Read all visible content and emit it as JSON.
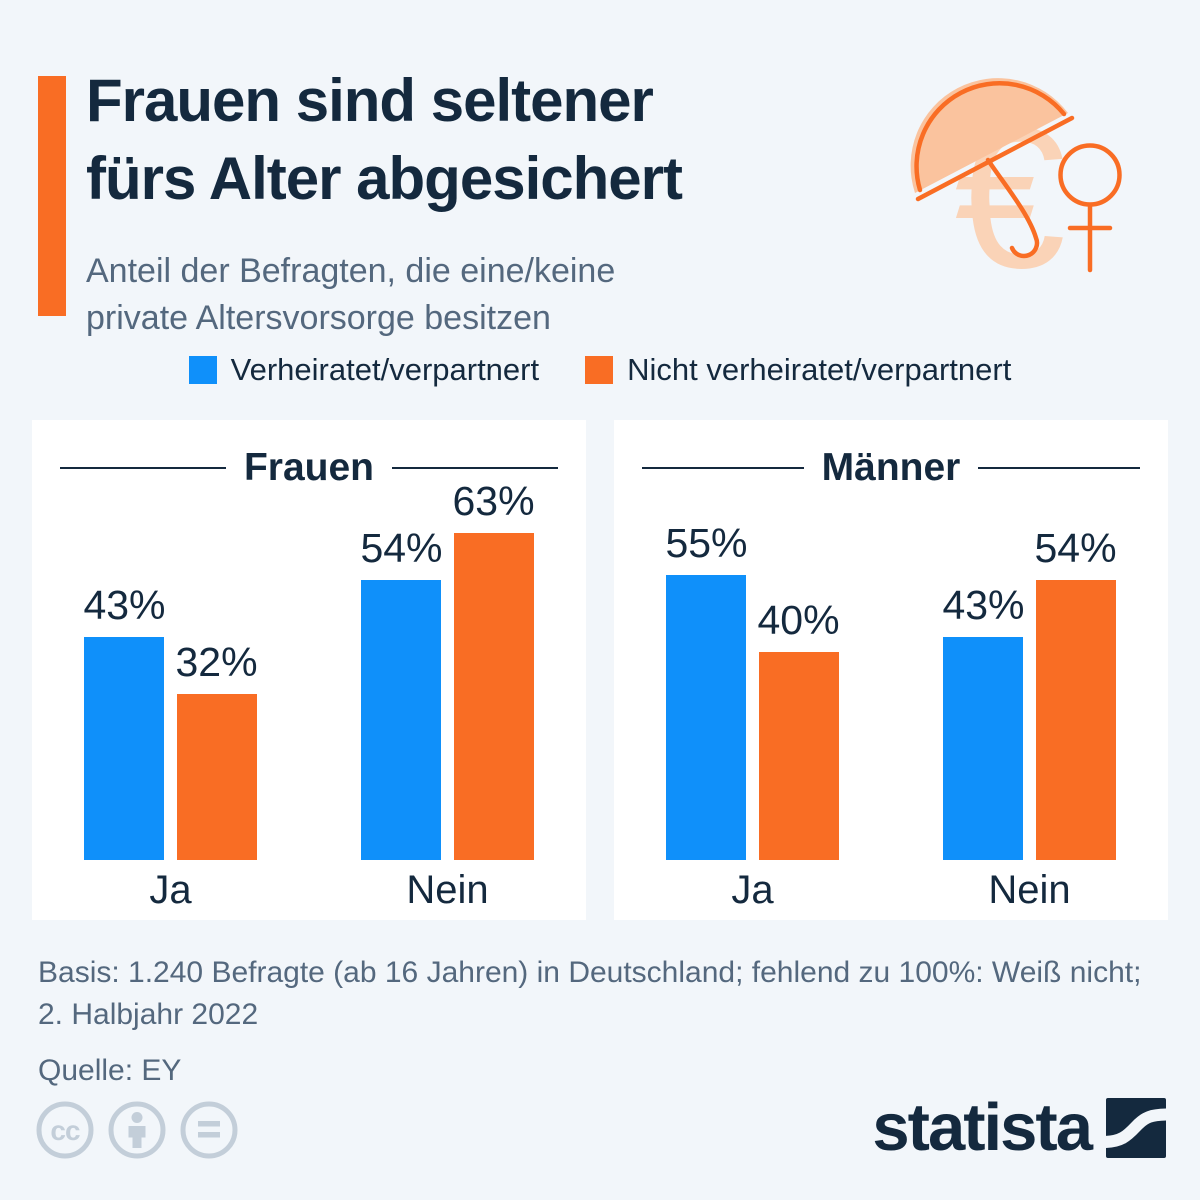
{
  "header": {
    "title_lines": [
      "Frauen sind seltener",
      "fürs Alter abgesichert"
    ],
    "subtitle_lines": [
      "Anteil der Befragten, die eine/keine",
      "private Altersvorsorge besitzen"
    ]
  },
  "legend": {
    "items": [
      {
        "label": "Verheiratet/verpartnert",
        "color": "#0f90fa"
      },
      {
        "label": "Nicht verheiratet/verpartnert",
        "color": "#f96d24"
      }
    ]
  },
  "chart_data": {
    "type": "bar",
    "title": "Anteil der Befragten, die eine/keine private Altersvorsorge besitzen",
    "categories": [
      "Ja",
      "Nein"
    ],
    "value_suffix": "%",
    "ylim": [
      0,
      70
    ],
    "grid": false,
    "legend_position": "top",
    "panels": [
      {
        "title": "Frauen",
        "series": [
          {
            "name": "Verheiratet/verpartnert",
            "color": "#0f90fa",
            "values": [
              43,
              54
            ]
          },
          {
            "name": "Nicht verheiratet/verpartnert",
            "color": "#f96d24",
            "values": [
              32,
              63
            ]
          }
        ]
      },
      {
        "title": "Männer",
        "series": [
          {
            "name": "Verheiratet/verpartnert",
            "color": "#0f90fa",
            "values": [
              55,
              43
            ]
          },
          {
            "name": "Nicht verheiratet/verpartnert",
            "color": "#f96d24",
            "values": [
              40,
              54
            ]
          }
        ]
      }
    ]
  },
  "footer": {
    "basis_lines": [
      "Basis: 1.240 Befragte (ab 16 Jahren) in Deutschland; fehlend zu 100%: Weiß nicht;",
      "2. Halbjahr 2022"
    ],
    "source": "Quelle: EY"
  },
  "branding": {
    "logo_text": "statista",
    "license_icons": [
      "cc-icon",
      "attribution-icon",
      "no-derivatives-icon"
    ]
  },
  "colors": {
    "background": "#f2f6fa",
    "card": "#ffffff",
    "navy": "#14293e",
    "muted_text": "#54687e",
    "blue": "#0f90fa",
    "orange": "#f96d24",
    "pale_orange": "#fac39e",
    "pale_euro": "#fad3b7",
    "cc_gray": "#c3ced9"
  }
}
